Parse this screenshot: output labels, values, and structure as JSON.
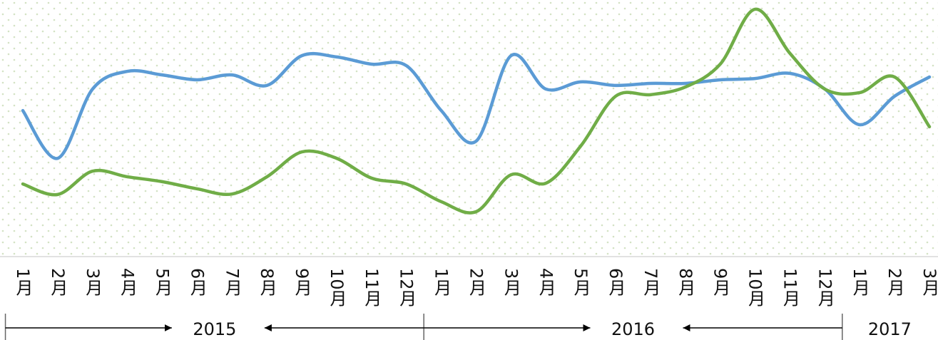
{
  "chart_data": {
    "type": "line",
    "categories": [
      "1月",
      "2月",
      "3月",
      "4月",
      "5月",
      "6月",
      "7月",
      "8月",
      "9月",
      "10月",
      "11月",
      "12月",
      "1月",
      "2月",
      "3月",
      "4月",
      "5月",
      "6月",
      "7月",
      "8月",
      "9月",
      "10月",
      "11月",
      "12月",
      "1月",
      "2月",
      "3月"
    ],
    "x_groups": [
      {
        "label": "2015",
        "count": 12
      },
      {
        "label": "2016",
        "count": 12
      },
      {
        "label": "2017",
        "count": 3
      }
    ],
    "series": [
      {
        "color": "#5b9bd5",
        "values": [
          56.9,
          38.3,
          65.3,
          72.2,
          70.8,
          68.9,
          70.8,
          66.7,
          78.3,
          77.8,
          75.0,
          74.4,
          56.9,
          45.0,
          78.3,
          65.3,
          68.1,
          66.7,
          67.5,
          67.5,
          68.9,
          69.4,
          71.4,
          65.3,
          51.4,
          62.5,
          70.0
        ]
      },
      {
        "color": "#70ad47",
        "values": [
          28.3,
          24.2,
          33.3,
          31.1,
          29.2,
          26.4,
          24.4,
          31.1,
          40.8,
          38.3,
          30.6,
          28.3,
          21.4,
          17.5,
          31.9,
          28.6,
          43.1,
          62.5,
          63.1,
          66.1,
          75.0,
          96.4,
          79.2,
          65.3,
          63.9,
          70.0,
          50.6
        ]
      }
    ],
    "ylim": [
      0,
      100
    ],
    "smooth": true
  }
}
